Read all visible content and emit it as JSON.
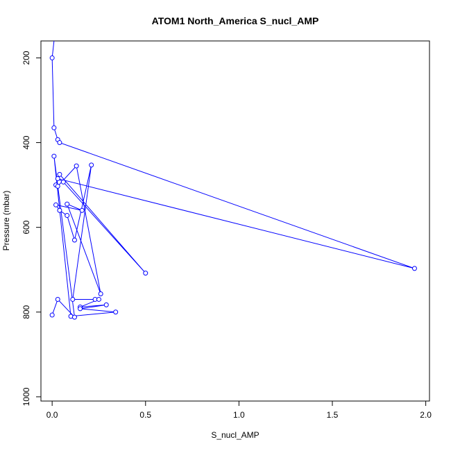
{
  "chart_data": {
    "type": "line",
    "title": "ATOM1 North_America S_nucl_AMP",
    "xlabel": "S_nucl_AMP",
    "ylabel": "Pressure (mbar)",
    "xlim": [
      -0.06,
      2.02
    ],
    "ylim": [
      1010,
      160
    ],
    "y_inverted": true,
    "grid": false,
    "x_ticks": [
      0.0,
      0.5,
      1.0,
      1.5,
      2.0
    ],
    "x_tick_labels": [
      "0.0",
      "0.5",
      "1.0",
      "1.5",
      "2.0"
    ],
    "y_ticks": [
      200,
      400,
      600,
      800,
      1000
    ],
    "y_tick_labels": [
      "200",
      "400",
      "600",
      "800",
      "1000"
    ],
    "series": [
      {
        "color": "#0000ff",
        "marker": "open-circle",
        "continues_above_plot": true,
        "points": [
          [
            0.0,
            200
          ],
          [
            0.01,
            365
          ],
          [
            0.03,
            393
          ],
          [
            0.04,
            400
          ],
          [
            1.94,
            697
          ],
          [
            0.03,
            485
          ],
          [
            0.06,
            493
          ],
          [
            0.5,
            708
          ],
          [
            0.04,
            475
          ],
          [
            0.02,
            500
          ],
          [
            0.03,
            503
          ],
          [
            0.13,
            455
          ],
          [
            0.26,
            757
          ],
          [
            0.08,
            545
          ],
          [
            0.16,
            560
          ],
          [
            0.02,
            547
          ],
          [
            0.04,
            560
          ],
          [
            0.08,
            572
          ],
          [
            0.12,
            630
          ],
          [
            0.21,
            453
          ],
          [
            0.11,
            770
          ],
          [
            0.23,
            770
          ],
          [
            0.25,
            770
          ],
          [
            0.15,
            788
          ],
          [
            0.29,
            783
          ],
          [
            0.15,
            792
          ],
          [
            0.34,
            800
          ],
          [
            0.1,
            810
          ],
          [
            0.01,
            432
          ],
          [
            0.12,
            812
          ],
          [
            0.03,
            770
          ],
          [
            0.0,
            807
          ]
        ]
      }
    ]
  }
}
